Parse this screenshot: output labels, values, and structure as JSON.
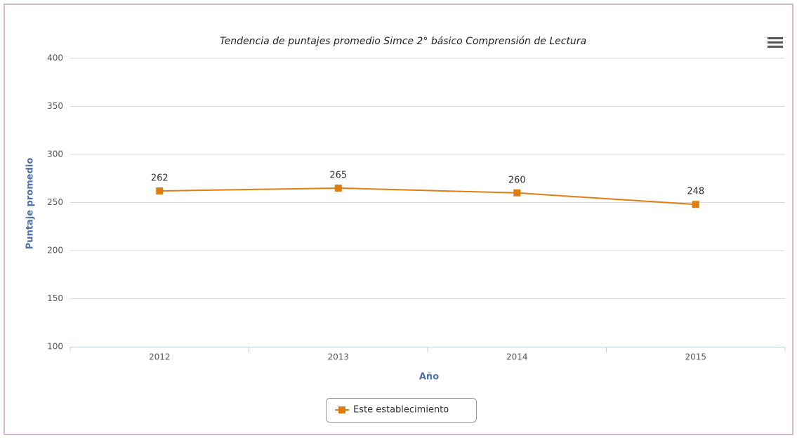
{
  "chart_data": {
    "type": "line",
    "title": "Tendencia de puntajes promedio Simce 2° básico Comprensión de Lectura",
    "x_label": "Año",
    "y_label": "Puntaje promedio",
    "categories": [
      "2012",
      "2013",
      "2014",
      "2015"
    ],
    "series": [
      {
        "name": "Este establecimiento",
        "color": "#e07d10",
        "values": [
          262,
          265,
          260,
          248
        ]
      }
    ],
    "ylim": [
      100,
      400
    ],
    "yticks": [
      100,
      150,
      200,
      250,
      300,
      350,
      400
    ],
    "grid": true,
    "data_labels": true,
    "legend": "bottom"
  }
}
